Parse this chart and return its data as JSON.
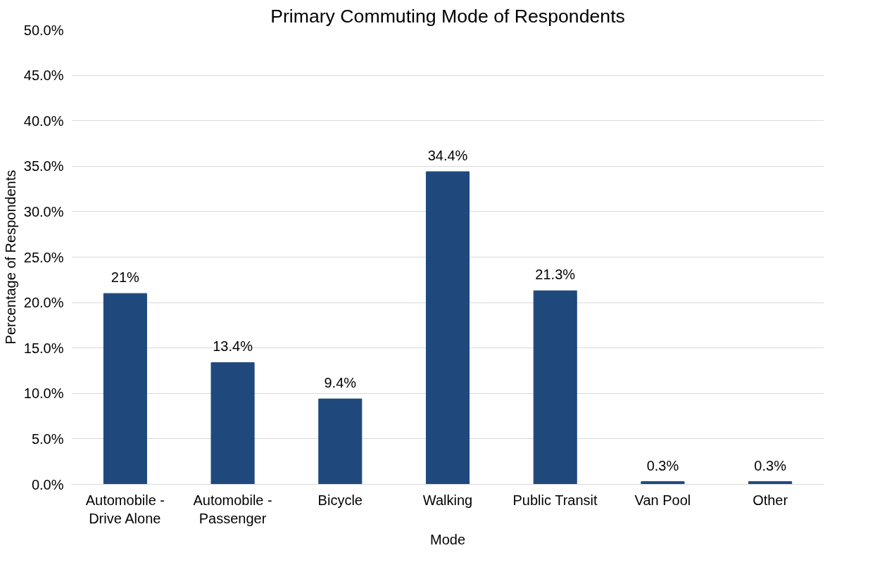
{
  "chart_data": {
    "type": "bar",
    "title": "Primary Commuting Mode of Respondents",
    "xlabel": "Mode",
    "ylabel": "Percentage of Respondents",
    "categories": [
      "Automobile - Drive Alone",
      "Automobile - Passenger",
      "Bicycle",
      "Walking",
      "Public Transit",
      "Van Pool",
      "Other"
    ],
    "values": [
      21,
      13.4,
      9.4,
      34.4,
      21.3,
      0.3,
      0.3
    ],
    "value_labels": [
      "21%",
      "13.4%",
      "9.4%",
      "34.4%",
      "21.3%",
      "0.3%",
      "0.3%"
    ],
    "color": "#1f497d",
    "ylim": [
      0,
      50
    ],
    "yticks": [
      {
        "value": 0,
        "label": "0.0%"
      },
      {
        "value": 5,
        "label": "5.0%"
      },
      {
        "value": 10,
        "label": "10.0%"
      },
      {
        "value": 15,
        "label": "15.0%"
      },
      {
        "value": 20,
        "label": "20.0%"
      },
      {
        "value": 25,
        "label": "25.0%"
      },
      {
        "value": 30,
        "label": "30.0%"
      },
      {
        "value": 35,
        "label": "35.0%"
      },
      {
        "value": 40,
        "label": "40.0%"
      },
      {
        "value": 45,
        "label": "45.0%"
      },
      {
        "value": 50,
        "label": "50.0%"
      }
    ],
    "grid": "y"
  }
}
